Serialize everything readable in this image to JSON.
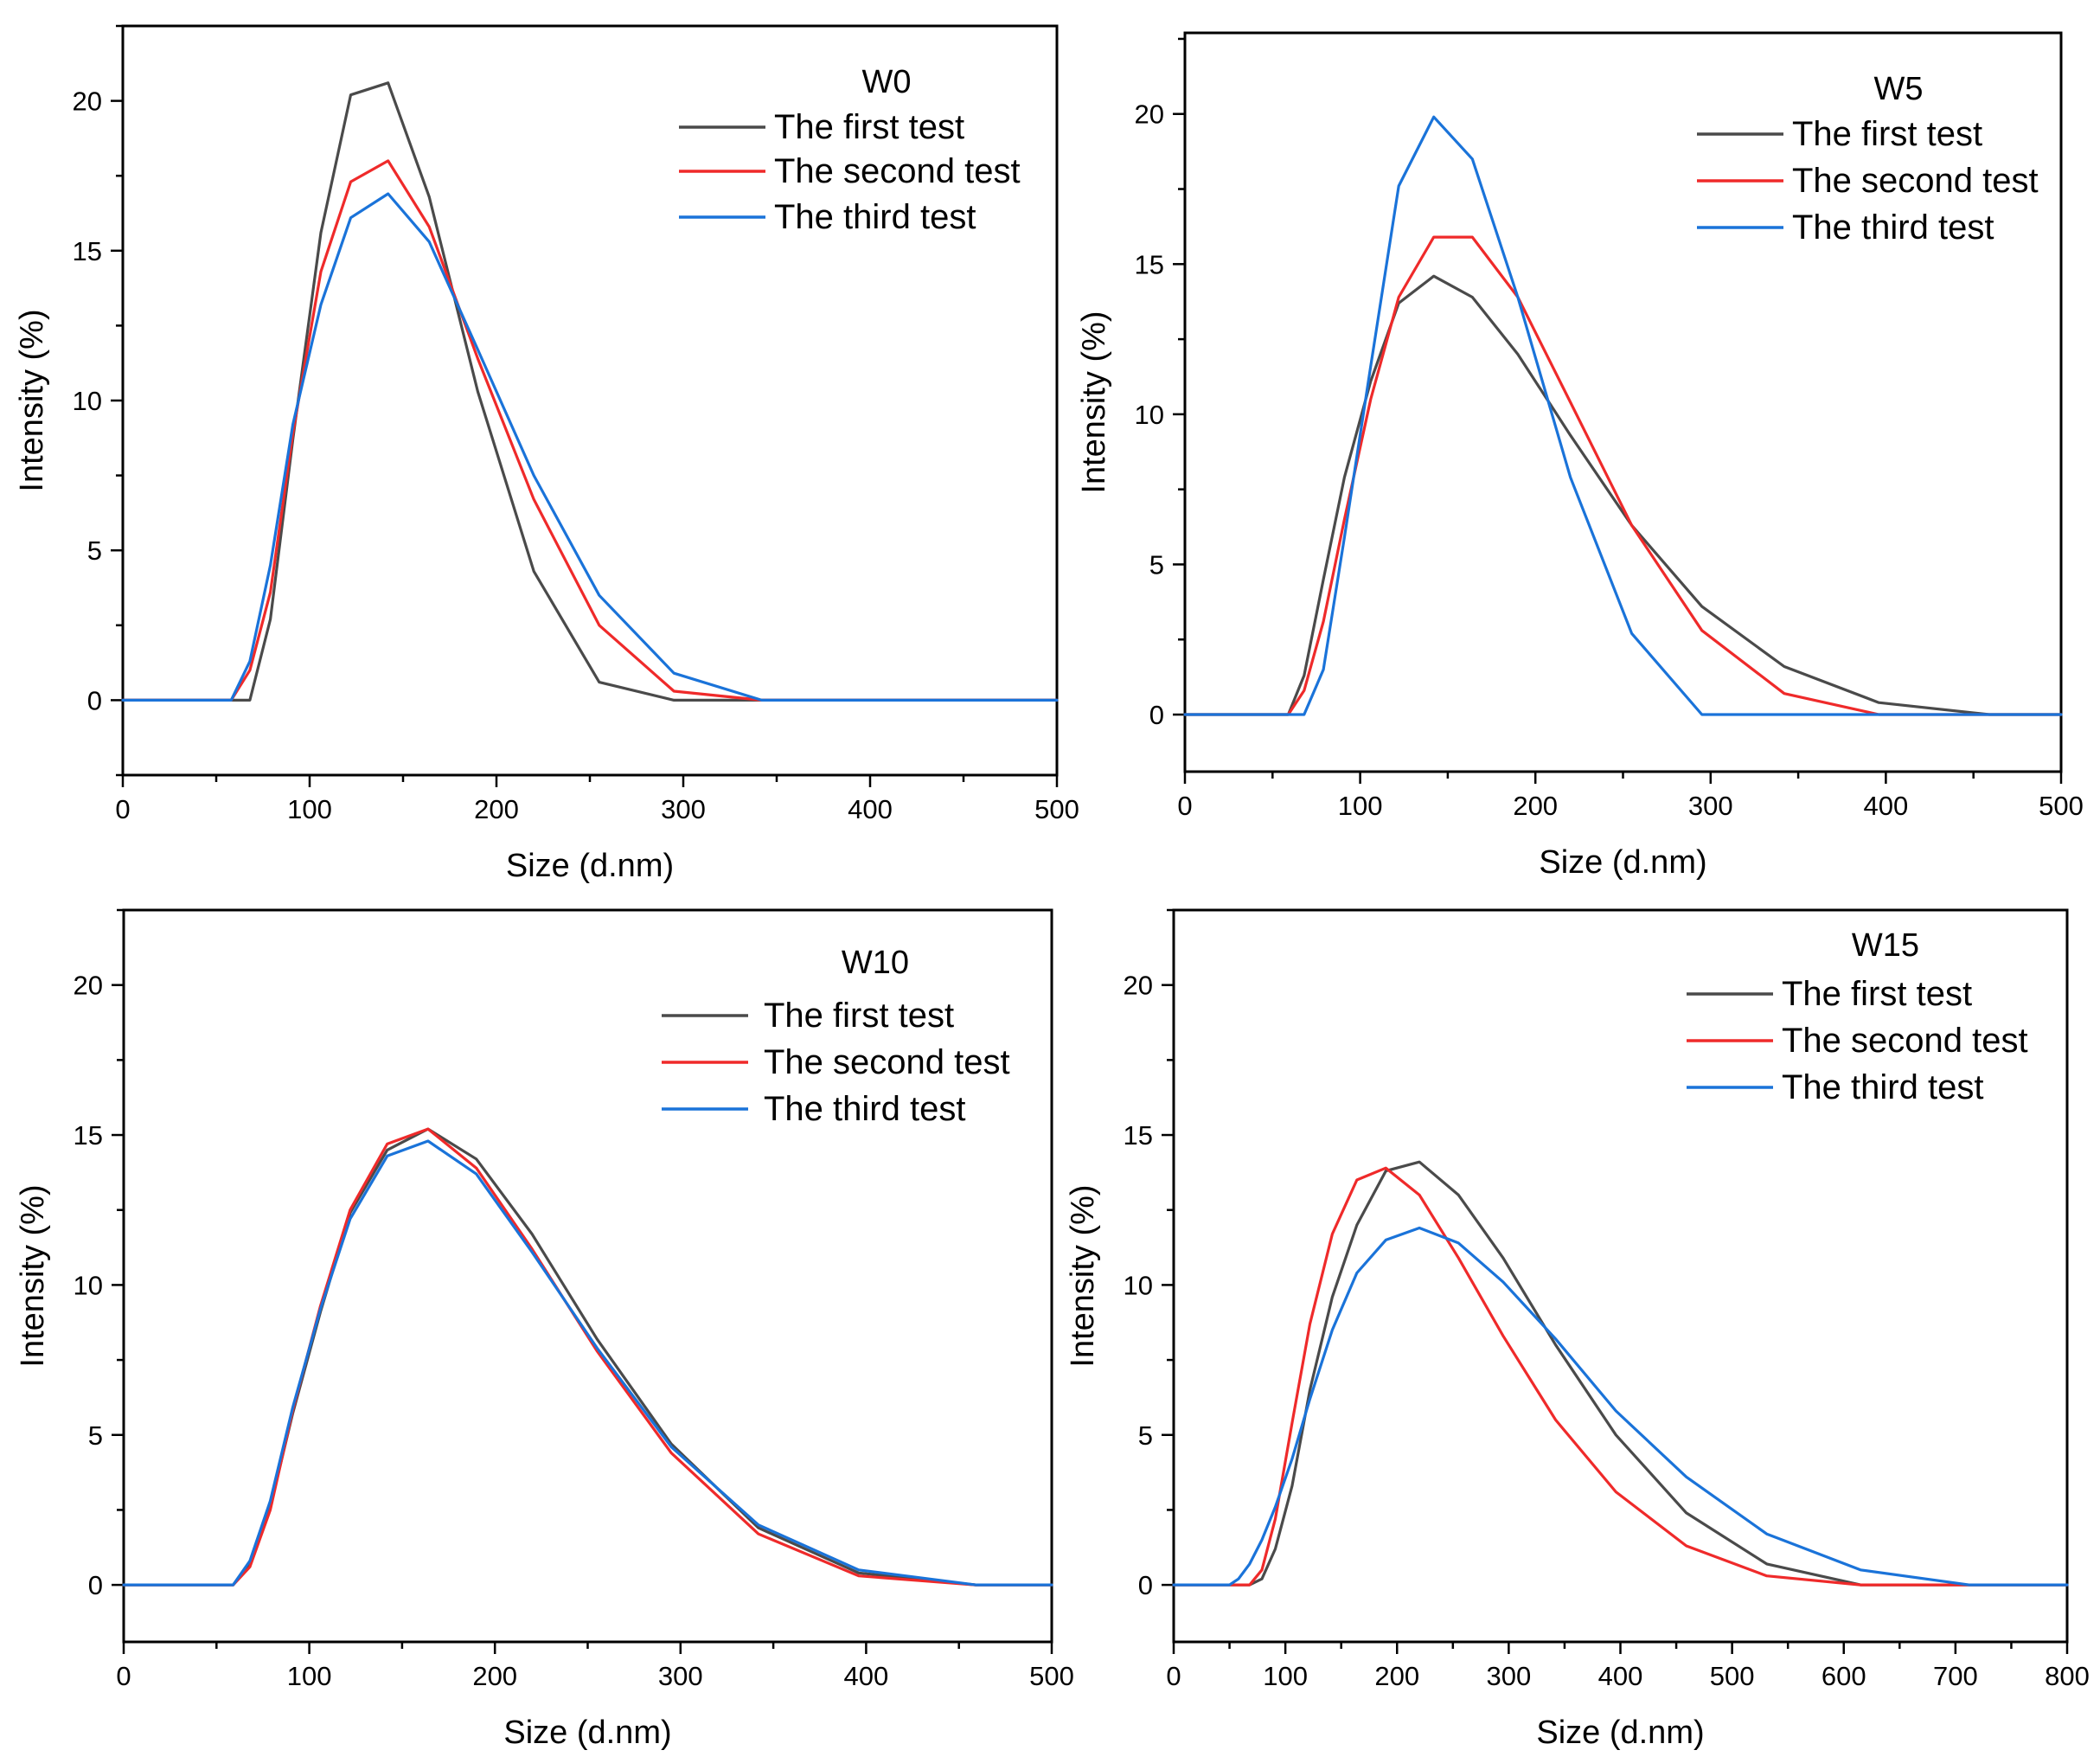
{
  "colors": {
    "first": "#4a4a4a",
    "second": "#ef2a2a",
    "third": "#1a73d9",
    "axis": "#000000"
  },
  "chart_data": [
    {
      "type": "line",
      "title": "W0",
      "xlabel": "Size (d.nm)",
      "ylabel": "Intensity (%)",
      "xlim": [
        0,
        500
      ],
      "ylim": [
        -2.5,
        22.5
      ],
      "xticks": [
        0,
        100,
        200,
        300,
        400,
        500
      ],
      "yticks": [
        0,
        5,
        10,
        15,
        20
      ],
      "legend_position": "top-right",
      "series": [
        {
          "name": "The first test",
          "color_key": "first",
          "x": [
            0,
            58,
            68,
            79,
            91,
            106,
            122,
            142,
            164,
            190,
            220,
            255,
            295,
            342,
            396,
            500
          ],
          "y": [
            0,
            0,
            0,
            2.7,
            8.7,
            15.6,
            20.2,
            20.6,
            16.8,
            10.3,
            4.3,
            0.6,
            0,
            0,
            0,
            0
          ]
        },
        {
          "name": "The second test",
          "color_key": "second",
          "x": [
            0,
            58,
            68,
            79,
            91,
            106,
            122,
            142,
            164,
            190,
            220,
            255,
            295,
            342,
            396,
            500
          ],
          "y": [
            0,
            0,
            1.0,
            3.6,
            8.9,
            14.3,
            17.3,
            18.0,
            15.8,
            11.4,
            6.7,
            2.5,
            0.3,
            0,
            0,
            0
          ]
        },
        {
          "name": "The third test",
          "color_key": "third",
          "x": [
            0,
            58,
            68,
            79,
            91,
            106,
            122,
            142,
            164,
            190,
            220,
            255,
            295,
            342,
            396,
            500
          ],
          "y": [
            0,
            0,
            1.3,
            4.5,
            9.2,
            13.2,
            16.1,
            16.9,
            15.3,
            11.7,
            7.5,
            3.5,
            0.9,
            0,
            0,
            0
          ]
        }
      ]
    },
    {
      "type": "line",
      "title": "W5",
      "xlabel": "Size (d.nm)",
      "ylabel": "Intensity (%)",
      "xlim": [
        0,
        500
      ],
      "ylim": [
        -1.9,
        22.7
      ],
      "xticks": [
        0,
        100,
        200,
        300,
        400,
        500
      ],
      "yticks": [
        0,
        5,
        10,
        15,
        20
      ],
      "legend_position": "top-right",
      "series": [
        {
          "name": "The first test",
          "color_key": "first",
          "x": [
            0,
            59,
            68,
            79,
            91,
            106,
            122,
            142,
            164,
            190,
            220,
            255,
            295,
            342,
            396,
            459,
            500
          ],
          "y": [
            0,
            0,
            1.3,
            4.5,
            7.9,
            11.1,
            13.7,
            14.6,
            13.9,
            12.0,
            9.3,
            6.3,
            3.6,
            1.6,
            0.4,
            0,
            0
          ]
        },
        {
          "name": "The second test",
          "color_key": "second",
          "x": [
            0,
            59,
            68,
            79,
            91,
            106,
            122,
            142,
            164,
            190,
            220,
            255,
            295,
            342,
            396,
            459,
            500
          ],
          "y": [
            0,
            0,
            0.8,
            3.1,
            6.5,
            10.5,
            13.9,
            15.9,
            15.9,
            13.9,
            10.4,
            6.3,
            2.8,
            0.7,
            0,
            0,
            0
          ]
        },
        {
          "name": "The third test",
          "color_key": "third",
          "x": [
            0,
            68,
            79,
            91,
            106,
            122,
            142,
            164,
            190,
            220,
            255,
            295,
            342,
            396,
            459,
            500
          ],
          "y": [
            0,
            0,
            1.5,
            5.9,
            11.6,
            17.6,
            19.9,
            18.5,
            13.9,
            7.9,
            2.7,
            0,
            0,
            0,
            0,
            0
          ]
        }
      ]
    },
    {
      "type": "line",
      "title": "W10",
      "xlabel": "Size (d.nm)",
      "ylabel": "Intensity (%)",
      "xlim": [
        0,
        500
      ],
      "ylim": [
        -1.9,
        22.5
      ],
      "xticks": [
        0,
        100,
        200,
        300,
        400,
        500
      ],
      "yticks": [
        0,
        5,
        10,
        15,
        20
      ],
      "legend_position": "top-right",
      "series": [
        {
          "name": "The first test",
          "color_key": "first",
          "x": [
            0,
            59,
            68,
            79,
            91,
            106,
            122,
            142,
            164,
            190,
            220,
            255,
            295,
            342,
            396,
            459,
            500
          ],
          "y": [
            0,
            0,
            0.7,
            2.6,
            5.7,
            9.1,
            12.4,
            14.5,
            15.2,
            14.2,
            11.7,
            8.2,
            4.7,
            1.9,
            0.4,
            0,
            0
          ]
        },
        {
          "name": "The second test",
          "color_key": "second",
          "x": [
            0,
            59,
            68,
            79,
            91,
            106,
            122,
            142,
            164,
            190,
            220,
            255,
            295,
            342,
            396,
            459,
            500
          ],
          "y": [
            0,
            0,
            0.6,
            2.5,
            5.8,
            9.3,
            12.5,
            14.7,
            15.2,
            13.9,
            11.2,
            7.8,
            4.4,
            1.7,
            0.3,
            0,
            0
          ]
        },
        {
          "name": "The third test",
          "color_key": "third",
          "x": [
            0,
            59,
            68,
            79,
            91,
            106,
            122,
            142,
            164,
            190,
            220,
            255,
            295,
            342,
            396,
            459,
            500
          ],
          "y": [
            0,
            0,
            0.8,
            2.8,
            5.9,
            9.2,
            12.2,
            14.3,
            14.8,
            13.7,
            11.1,
            7.9,
            4.6,
            2.0,
            0.5,
            0,
            0
          ]
        }
      ]
    },
    {
      "type": "line",
      "title": "W15",
      "xlabel": "Size (d.nm)",
      "ylabel": "Intensity (%)",
      "xlim": [
        0,
        800
      ],
      "ylim": [
        -1.9,
        22.5
      ],
      "xticks": [
        0,
        100,
        200,
        300,
        400,
        500,
        600,
        700,
        800
      ],
      "yticks": [
        0,
        5,
        10,
        15,
        20
      ],
      "legend_position": "top-right",
      "series": [
        {
          "name": "The first test",
          "color_key": "first",
          "x": [
            0,
            68,
            79,
            91,
            106,
            122,
            142,
            164,
            190,
            220,
            255,
            295,
            342,
            396,
            459,
            531,
            615,
            712,
            800
          ],
          "y": [
            0,
            0,
            0.2,
            1.2,
            3.3,
            6.5,
            9.6,
            12.0,
            13.8,
            14.1,
            13.0,
            10.9,
            8.0,
            5.0,
            2.4,
            0.7,
            0,
            0,
            0
          ]
        },
        {
          "name": "The second test",
          "color_key": "second",
          "x": [
            0,
            58,
            68,
            79,
            91,
            106,
            122,
            142,
            164,
            190,
            220,
            255,
            295,
            342,
            396,
            459,
            531,
            615,
            712,
            800
          ],
          "y": [
            0,
            0,
            0,
            0.5,
            2.2,
            5.4,
            8.7,
            11.7,
            13.5,
            13.9,
            13.0,
            10.9,
            8.3,
            5.5,
            3.1,
            1.3,
            0.3,
            0,
            0,
            0
          ]
        },
        {
          "name": "The third test",
          "color_key": "third",
          "x": [
            0,
            50,
            58,
            68,
            79,
            91,
            106,
            122,
            142,
            164,
            190,
            220,
            255,
            295,
            342,
            396,
            459,
            531,
            615,
            712,
            800
          ],
          "y": [
            0,
            0,
            0.2,
            0.7,
            1.5,
            2.6,
            4.2,
            6.2,
            8.5,
            10.4,
            11.5,
            11.9,
            11.4,
            10.1,
            8.2,
            5.8,
            3.6,
            1.7,
            0.5,
            0,
            0
          ]
        }
      ]
    }
  ]
}
